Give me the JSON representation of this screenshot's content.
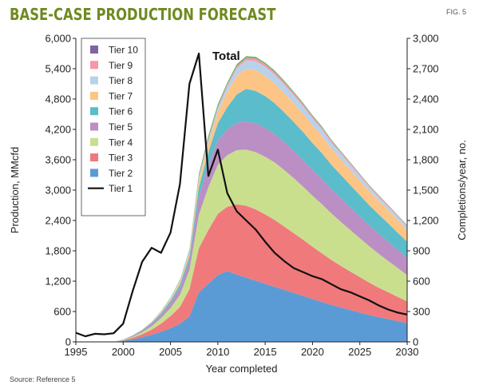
{
  "header": {
    "title": "BASE-CASE PRODUCTION FORECAST",
    "fig": "FIG. 5"
  },
  "footer": {
    "source": "Source: Reference 5"
  },
  "chart_data": {
    "type": "area",
    "title": "BASE-CASE PRODUCTION FORECAST",
    "xlabel": "Year completed",
    "ylabel": "Production, MMcfd",
    "y2label": "Completions/year, no.",
    "xlim": [
      1995,
      2030
    ],
    "ylim": [
      0,
      6000
    ],
    "y2lim": [
      0,
      3000
    ],
    "x_ticks": [
      1995,
      2000,
      2005,
      2010,
      2015,
      2020,
      2025,
      2030
    ],
    "y_ticks": [
      0,
      600,
      1200,
      1800,
      2400,
      3000,
      3600,
      4200,
      4800,
      5400,
      6000
    ],
    "y2_ticks": [
      0,
      300,
      600,
      900,
      1200,
      1500,
      1800,
      2100,
      2400,
      2700,
      3000
    ],
    "annotation": "Total",
    "legend_position": "top-left",
    "x": [
      1999,
      2000,
      2001,
      2002,
      2003,
      2004,
      2005,
      2006,
      2007,
      2008,
      2009,
      2010,
      2011,
      2012,
      2013,
      2014,
      2015,
      2016,
      2017,
      2018,
      2019,
      2020,
      2021,
      2022,
      2023,
      2024,
      2025,
      2026,
      2027,
      2028,
      2029,
      2030
    ],
    "stacked_series": [
      {
        "name": "Tier 2",
        "color": "#5b9bd5",
        "values": [
          0,
          20,
          50,
          90,
          140,
          200,
          270,
          360,
          500,
          980,
          1150,
          1320,
          1400,
          1330,
          1270,
          1210,
          1150,
          1090,
          1030,
          970,
          910,
          850,
          790,
          730,
          680,
          630,
          580,
          530,
          490,
          450,
          410,
          370
        ]
      },
      {
        "name": "Tier 3",
        "color": "#f0797c",
        "values": [
          0,
          10,
          30,
          60,
          100,
          160,
          240,
          330,
          540,
          870,
          1060,
          1210,
          1270,
          1390,
          1420,
          1410,
          1370,
          1320,
          1250,
          1180,
          1110,
          1030,
          960,
          890,
          820,
          760,
          700,
          640,
          580,
          530,
          480,
          430
        ]
      },
      {
        "name": "Tier 4",
        "color": "#c9df8e",
        "values": [
          0,
          5,
          20,
          40,
          70,
          110,
          160,
          240,
          380,
          660,
          850,
          970,
          1020,
          1070,
          1110,
          1130,
          1140,
          1140,
          1120,
          1090,
          1050,
          1010,
          970,
          920,
          870,
          820,
          770,
          720,
          670,
          620,
          570,
          520
        ]
      },
      {
        "name": "Tier 5",
        "color": "#bb8fc3",
        "values": [
          0,
          5,
          15,
          25,
          40,
          60,
          90,
          130,
          180,
          350,
          440,
          490,
          510,
          540,
          560,
          570,
          570,
          560,
          550,
          540,
          530,
          510,
          500,
          480,
          470,
          450,
          430,
          410,
          400,
          380,
          360,
          340
        ]
      },
      {
        "name": "Tier 6",
        "color": "#5bbccb",
        "values": [
          0,
          5,
          10,
          15,
          25,
          35,
          50,
          70,
          90,
          190,
          250,
          330,
          440,
          560,
          640,
          640,
          630,
          610,
          590,
          570,
          550,
          530,
          510,
          480,
          460,
          440,
          420,
          400,
          380,
          360,
          340,
          320
        ]
      },
      {
        "name": "Tier 7",
        "color": "#fdc585",
        "values": [
          0,
          0,
          5,
          10,
          15,
          25,
          35,
          50,
          70,
          140,
          170,
          220,
          300,
          370,
          400,
          410,
          400,
          390,
          380,
          370,
          360,
          350,
          340,
          320,
          310,
          300,
          290,
          280,
          270,
          260,
          250,
          240
        ]
      },
      {
        "name": "Tier 8",
        "color": "#b9d2ec",
        "values": [
          0,
          0,
          0,
          5,
          5,
          10,
          15,
          20,
          30,
          50,
          60,
          80,
          110,
          150,
          170,
          180,
          180,
          175,
          170,
          160,
          150,
          140,
          130,
          120,
          110,
          100,
          90,
          80,
          75,
          70,
          65,
          60
        ]
      },
      {
        "name": "Tier 9",
        "color": "#f598a8",
        "values": [
          0,
          0,
          0,
          0,
          5,
          5,
          5,
          10,
          10,
          20,
          25,
          30,
          35,
          40,
          45,
          50,
          50,
          48,
          46,
          44,
          42,
          40,
          38,
          36,
          34,
          32,
          30,
          28,
          26,
          24,
          22,
          20
        ]
      },
      {
        "name": "Tier 10",
        "color": "#6ab76a",
        "values": [
          0,
          0,
          0,
          0,
          0,
          5,
          10,
          15,
          25,
          60,
          70,
          50,
          40,
          40,
          35,
          35,
          30,
          30,
          28,
          26,
          24,
          22,
          20,
          18,
          16,
          14,
          12,
          10,
          10,
          10,
          10,
          10
        ]
      }
    ],
    "legend_extra": [
      {
        "name": "Tier 10",
        "color": "#8064a2"
      }
    ],
    "line_series": {
      "name": "Tier 1",
      "axis": "right",
      "color": "#111111",
      "x": [
        1995,
        1996,
        1997,
        1998,
        1999,
        2000,
        2001,
        2002,
        2003,
        2004,
        2005,
        2006,
        2007,
        2008,
        2009,
        2010,
        2011,
        2012,
        2013,
        2014,
        2015,
        2016,
        2017,
        2018,
        2019,
        2020,
        2021,
        2022,
        2023,
        2024,
        2025,
        2026,
        2027,
        2028,
        2029,
        2030
      ],
      "values": [
        90,
        55,
        80,
        75,
        85,
        180,
        500,
        790,
        930,
        880,
        1080,
        1560,
        2550,
        2850,
        1640,
        1900,
        1470,
        1290,
        1200,
        1110,
        990,
        880,
        800,
        730,
        690,
        650,
        620,
        570,
        520,
        490,
        450,
        410,
        360,
        320,
        290,
        270
      ]
    }
  }
}
